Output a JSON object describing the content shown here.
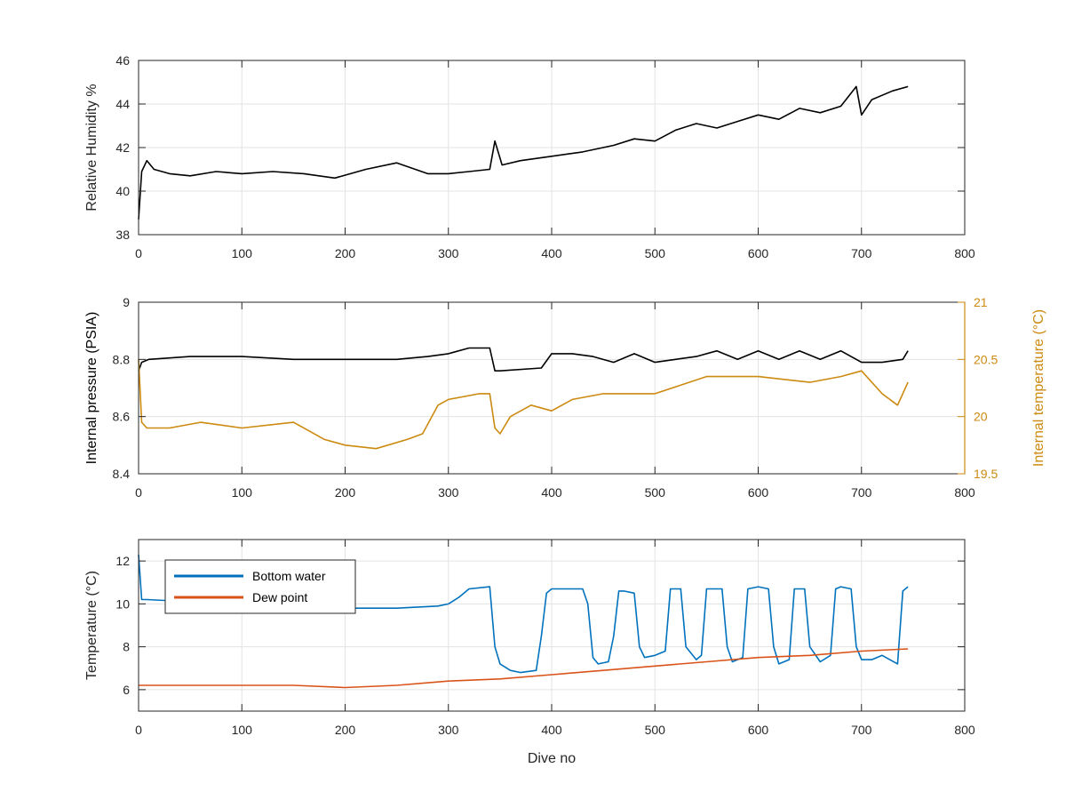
{
  "chart_data": [
    {
      "type": "line",
      "xlabel": "",
      "ylabel": "Relative Humidity %",
      "xlim": [
        0,
        800
      ],
      "ylim": [
        38,
        46
      ],
      "xticks": [
        0,
        100,
        200,
        300,
        400,
        500,
        600,
        700,
        800
      ],
      "yticks": [
        38,
        40,
        42,
        44,
        46
      ],
      "grid": true,
      "series": [
        {
          "name": "",
          "color": "#000000",
          "x": [
            0,
            3,
            8,
            15,
            30,
            50,
            75,
            100,
            130,
            160,
            190,
            220,
            250,
            280,
            300,
            320,
            340,
            345,
            352,
            370,
            400,
            430,
            460,
            480,
            500,
            520,
            540,
            560,
            580,
            600,
            620,
            640,
            660,
            680,
            695,
            700,
            710,
            730,
            745
          ],
          "y": [
            38.7,
            40.9,
            41.4,
            41.0,
            40.8,
            40.7,
            40.9,
            40.8,
            40.9,
            40.8,
            40.6,
            41.0,
            41.3,
            40.8,
            40.8,
            40.9,
            41.0,
            42.3,
            41.2,
            41.4,
            41.6,
            41.8,
            42.1,
            42.4,
            42.3,
            42.8,
            43.1,
            42.9,
            43.2,
            43.5,
            43.3,
            43.8,
            43.6,
            43.9,
            44.8,
            43.5,
            44.2,
            44.6,
            44.8
          ]
        }
      ]
    },
    {
      "type": "line",
      "xlabel": "",
      "ylabel": "Internal pressure (PSIA)",
      "y2label": "Internal temperature (°C)",
      "xlim": [
        0,
        800
      ],
      "ylim": [
        8.4,
        9
      ],
      "y2lim": [
        19.5,
        21
      ],
      "xticks": [
        0,
        100,
        200,
        300,
        400,
        500,
        600,
        700,
        800
      ],
      "yticks": [
        8.4,
        8.6,
        8.8,
        9
      ],
      "y2ticks": [
        19.5,
        20,
        20.5,
        21
      ],
      "grid": true,
      "series": [
        {
          "name": "",
          "axis": "left",
          "color": "#000000",
          "x": [
            0,
            3,
            10,
            50,
            100,
            150,
            200,
            250,
            280,
            300,
            320,
            340,
            345,
            350,
            390,
            400,
            420,
            440,
            460,
            480,
            500,
            520,
            540,
            560,
            580,
            600,
            620,
            640,
            660,
            680,
            700,
            720,
            740,
            745
          ],
          "y": [
            8.76,
            8.79,
            8.8,
            8.81,
            8.81,
            8.8,
            8.8,
            8.8,
            8.81,
            8.82,
            8.84,
            8.84,
            8.76,
            8.76,
            8.77,
            8.82,
            8.82,
            8.81,
            8.79,
            8.82,
            8.79,
            8.8,
            8.81,
            8.83,
            8.8,
            8.83,
            8.8,
            8.83,
            8.8,
            8.83,
            8.79,
            8.79,
            8.8,
            8.83
          ]
        },
        {
          "name": "",
          "axis": "right",
          "color": "#cc8a10",
          "x": [
            0,
            3,
            8,
            30,
            60,
            100,
            150,
            180,
            200,
            230,
            260,
            275,
            290,
            300,
            330,
            340,
            345,
            350,
            360,
            380,
            400,
            420,
            450,
            500,
            550,
            600,
            650,
            680,
            700,
            720,
            735,
            745
          ],
          "y": [
            20.5,
            19.95,
            19.9,
            19.9,
            19.95,
            19.9,
            19.95,
            19.8,
            19.75,
            19.72,
            19.8,
            19.85,
            20.1,
            20.15,
            20.2,
            20.2,
            19.9,
            19.85,
            20.0,
            20.1,
            20.05,
            20.15,
            20.2,
            20.2,
            20.35,
            20.35,
            20.3,
            20.35,
            20.4,
            20.2,
            20.1,
            20.3
          ]
        }
      ]
    },
    {
      "type": "line",
      "xlabel": "Dive no",
      "ylabel": "Temperature (°C)",
      "xlim": [
        0,
        800
      ],
      "ylim": [
        5,
        13
      ],
      "xticks": [
        0,
        100,
        200,
        300,
        400,
        500,
        600,
        700,
        800
      ],
      "yticks": [
        6,
        8,
        10,
        12
      ],
      "grid": true,
      "legend": "top-left",
      "series": [
        {
          "name": "Bottom water",
          "color": "#0072bd",
          "x": [
            0,
            3,
            8,
            50,
            100,
            150,
            200,
            250,
            290,
            300,
            310,
            320,
            340,
            345,
            350,
            360,
            370,
            385,
            390,
            395,
            400,
            430,
            435,
            440,
            445,
            455,
            460,
            465,
            470,
            480,
            485,
            490,
            500,
            510,
            515,
            525,
            530,
            540,
            545,
            550,
            565,
            570,
            575,
            585,
            590,
            600,
            610,
            615,
            620,
            630,
            635,
            645,
            650,
            660,
            670,
            675,
            680,
            690,
            695,
            700,
            710,
            720,
            735,
            740,
            745
          ],
          "y": [
            12.3,
            10.2,
            10.2,
            10.1,
            10.0,
            9.9,
            9.8,
            9.8,
            9.9,
            10.0,
            10.3,
            10.7,
            10.8,
            8.0,
            7.2,
            6.9,
            6.8,
            6.9,
            8.5,
            10.5,
            10.7,
            10.7,
            10.0,
            7.5,
            7.2,
            7.3,
            8.5,
            10.6,
            10.6,
            10.5,
            8.0,
            7.5,
            7.6,
            7.8,
            10.7,
            10.7,
            8.0,
            7.4,
            7.6,
            10.7,
            10.7,
            8.0,
            7.3,
            7.5,
            10.7,
            10.8,
            10.7,
            8.0,
            7.2,
            7.4,
            10.7,
            10.7,
            8.0,
            7.3,
            7.6,
            10.7,
            10.8,
            10.7,
            8.0,
            7.4,
            7.4,
            7.6,
            7.2,
            10.6,
            10.8
          ]
        },
        {
          "name": "Dew point",
          "color": "#d95319",
          "x": [
            0,
            50,
            100,
            150,
            200,
            250,
            300,
            350,
            400,
            450,
            500,
            550,
            600,
            650,
            700,
            745
          ],
          "y": [
            6.2,
            6.2,
            6.2,
            6.2,
            6.1,
            6.2,
            6.4,
            6.5,
            6.7,
            6.9,
            7.1,
            7.3,
            7.5,
            7.6,
            7.8,
            7.9
          ]
        }
      ]
    }
  ]
}
